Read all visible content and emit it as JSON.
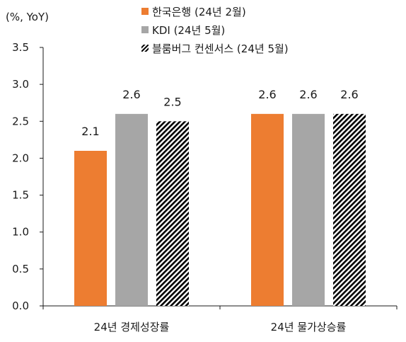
{
  "chart_data": {
    "type": "bar",
    "unit_label": "(%, YoY)",
    "categories": [
      "24년 경제성장률",
      "24년 물가상승률"
    ],
    "series": [
      {
        "name": "한국은행 (24년 2월)",
        "values": [
          2.1,
          2.6
        ],
        "color": "#ED7D31",
        "pattern": "solid"
      },
      {
        "name": "KDI (24년 5월)",
        "values": [
          2.6,
          2.6
        ],
        "color": "#A6A6A6",
        "pattern": "solid"
      },
      {
        "name": "블룸버그 컨센서스 (24년 5월)",
        "values": [
          2.5,
          2.6
        ],
        "color": "#000000",
        "pattern": "diagonal-hatch"
      }
    ],
    "data_labels": [
      [
        "2.1",
        "2.6",
        "2.5"
      ],
      [
        "2.6",
        "2.6",
        "2.6"
      ]
    ],
    "yticks": [
      "0.0",
      "0.5",
      "1.0",
      "1.5",
      "2.0",
      "2.5",
      "3.0",
      "3.5"
    ],
    "ylim": [
      0,
      3.5
    ],
    "grid": false,
    "legend_position": "top"
  }
}
